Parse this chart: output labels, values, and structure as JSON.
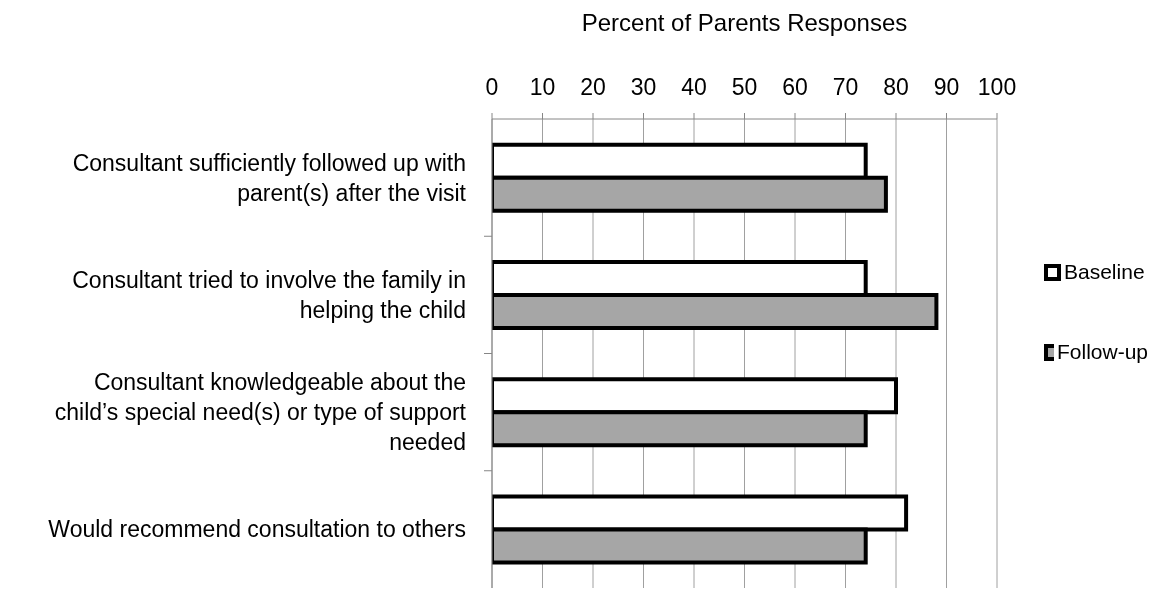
{
  "chart_data": {
    "type": "bar",
    "orientation": "horizontal",
    "xlabel": "Percent of Parents Responses",
    "categories": [
      "Consultant sufficiently followed up with parent(s) after the visit",
      "Consultant tried to involve the family in helping the child",
      "Consultant knowledgeable about the child’s special need(s) or type of support needed",
      "Would recommend consultation to others"
    ],
    "series": [
      {
        "name": "Baseline",
        "color": "#ffffff",
        "values": [
          74,
          74,
          80,
          82
        ]
      },
      {
        "name": "Follow-up",
        "color": "#a6a6a6",
        "values": [
          78,
          88,
          74,
          74
        ]
      }
    ],
    "xlim": [
      0,
      100
    ],
    "xticks": [
      0,
      10,
      20,
      30,
      40,
      50,
      60,
      70,
      80,
      90,
      100
    ],
    "grid": "x",
    "legend": "right"
  }
}
